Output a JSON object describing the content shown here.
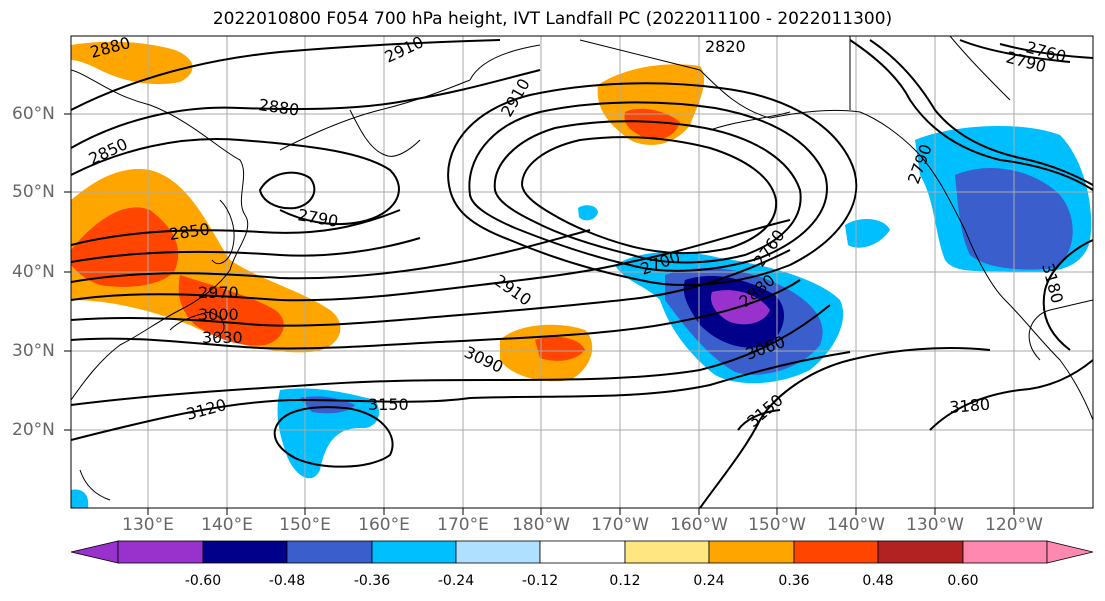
{
  "title": "2022010800 F054 700 hPa height, IVT Landfall PC (2022011100 - 2022011300)",
  "lat_labels": [
    "60°N",
    "50°N",
    "40°N",
    "30°N",
    "20°N"
  ],
  "lon_labels": [
    "130°E",
    "140°E",
    "150°E",
    "160°E",
    "170°E",
    "180°W",
    "170°W",
    "160°W",
    "150°W",
    "140°W",
    "130°W",
    "120°W"
  ],
  "contour_labels": [
    "2880",
    "2910",
    "2820",
    "2760",
    "2790",
    "2880",
    "2850",
    "2790",
    "2850",
    "2700",
    "2760",
    "2970",
    "3000",
    "3030",
    "2910",
    "3090",
    "2880",
    "3060",
    "3120",
    "3150",
    "3150",
    "3180",
    "3180",
    "2790",
    "2910"
  ],
  "colorbar": {
    "ticks": [
      "-0.60",
      "-0.48",
      "-0.36",
      "-0.24",
      "-0.12",
      "0.12",
      "0.24",
      "0.36",
      "0.48",
      "0.60"
    ],
    "colors": [
      "#9932cc",
      "#00008b",
      "#3a5fcd",
      "#00bfff",
      "#b0e0ff",
      "#ffffff",
      "#ffe680",
      "#ffa500",
      "#ff4500",
      "#b22222",
      "#ff88b0"
    ]
  }
}
